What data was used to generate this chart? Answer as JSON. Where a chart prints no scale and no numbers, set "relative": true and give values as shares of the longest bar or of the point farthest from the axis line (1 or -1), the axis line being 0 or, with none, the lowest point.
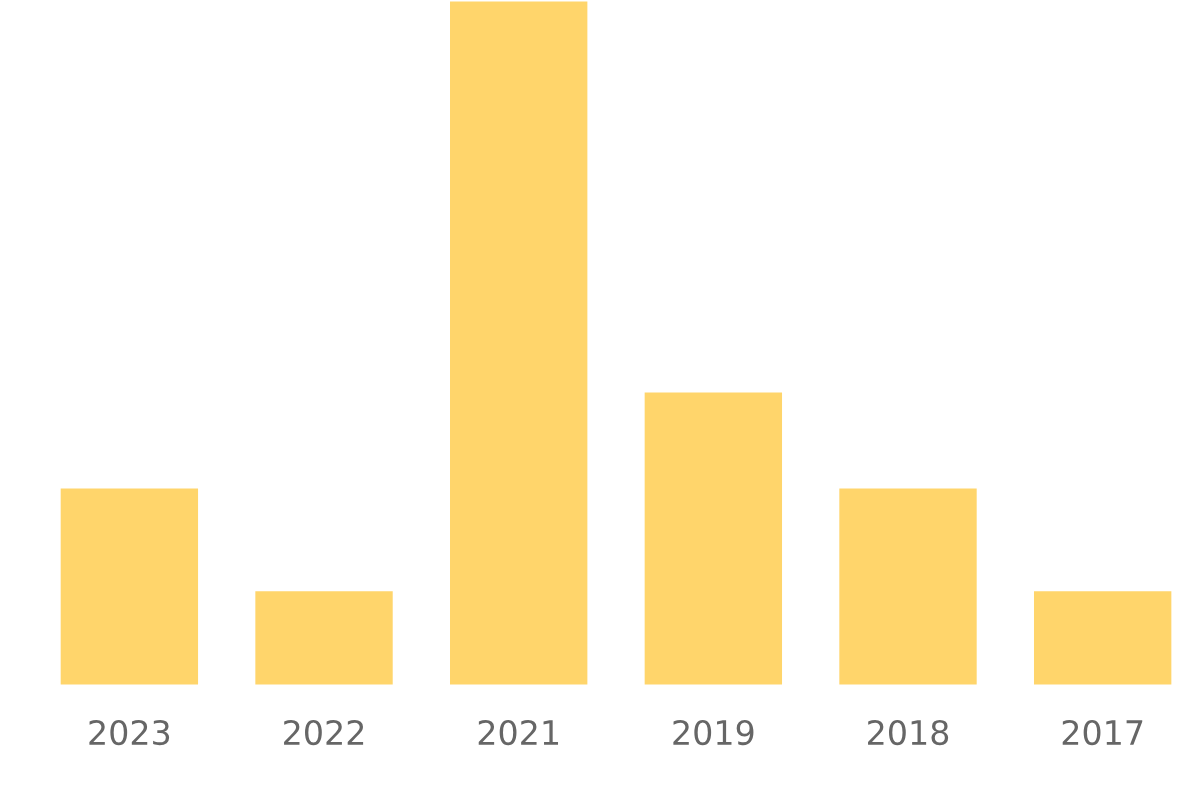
{
  "chart_data": {
    "type": "bar",
    "relative": true,
    "categories": [
      "2023",
      "2022",
      "2021",
      "2019",
      "2018",
      "2017"
    ],
    "values": [
      0.29,
      0.14,
      1,
      0.43,
      0.29,
      0.14
    ],
    "color": "#ffd56b",
    "grid": false,
    "legend": false
  }
}
